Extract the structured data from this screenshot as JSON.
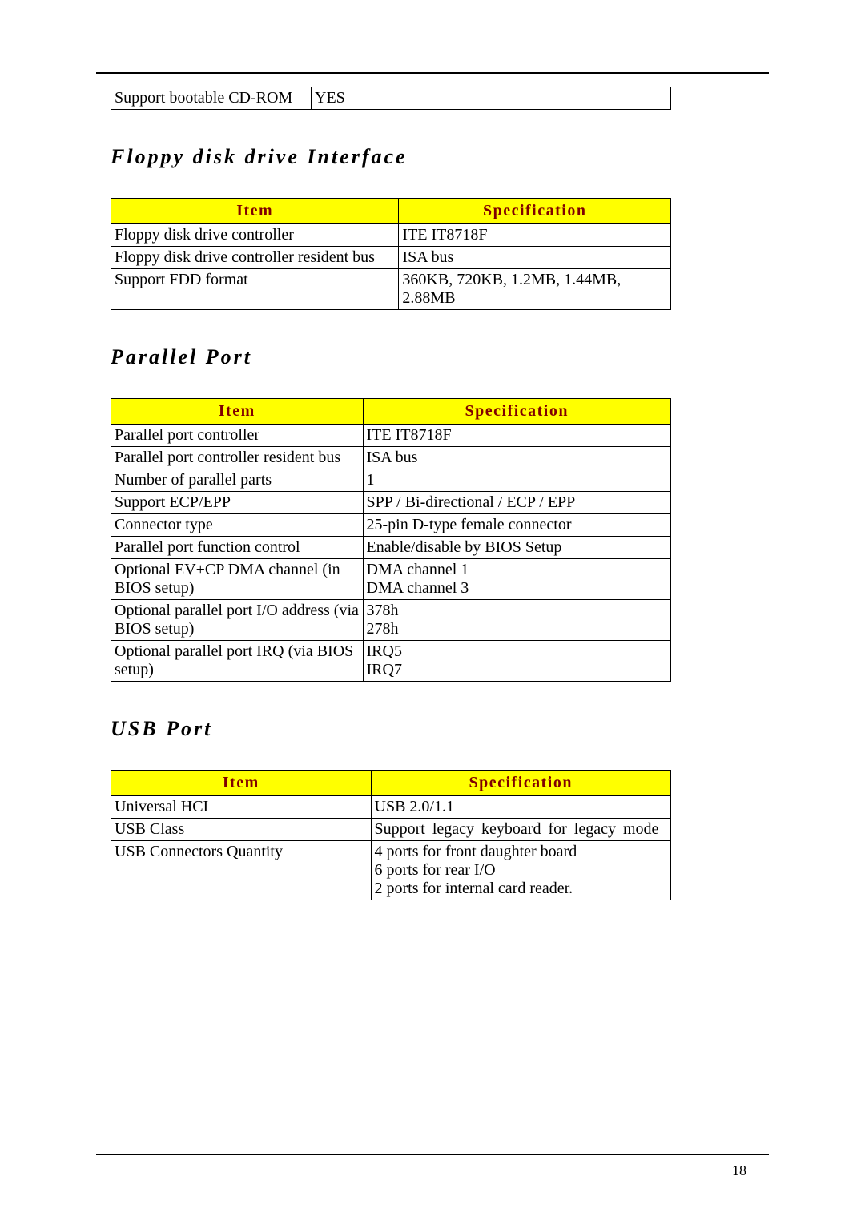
{
  "page_number": "18",
  "colors": {
    "header_bg": "#ffff00",
    "header_text": "#800000",
    "border": "#000000",
    "text": "#000000",
    "background": "#ffffff"
  },
  "top_table": {
    "columns": [
      "",
      ""
    ],
    "rows": [
      {
        "item": "Support bootable CD-ROM",
        "spec": "YES"
      }
    ]
  },
  "sections": [
    {
      "title": "Floppy disk drive Interface",
      "col_widths": [
        "360px",
        "340px"
      ],
      "headers": [
        "Item",
        "Specification"
      ],
      "rows": [
        {
          "item": [
            "Floppy disk drive controller"
          ],
          "spec": [
            "ITE IT8718F"
          ]
        },
        {
          "item": [
            "Floppy disk drive controller resident bus"
          ],
          "spec": [
            "ISA bus"
          ]
        },
        {
          "item": [
            "Support FDD format"
          ],
          "spec": [
            "360KB, 720KB, 1.2MB, 1.44MB, 2.88MB"
          ]
        }
      ]
    },
    {
      "title": "Parallel Port",
      "col_widths": [
        "315px",
        "385px"
      ],
      "headers": [
        "Item",
        "Specification"
      ],
      "rows": [
        {
          "item": [
            "Parallel port controller"
          ],
          "spec": [
            "ITE IT8718F"
          ]
        },
        {
          "item": [
            "Parallel port controller resident bus"
          ],
          "spec": [
            "ISA bus"
          ]
        },
        {
          "item": [
            "Number of parallel parts"
          ],
          "spec": [
            "1"
          ]
        },
        {
          "item": [
            "Support ECP/EPP"
          ],
          "spec": [
            "SPP / Bi-directional / ECP / EPP"
          ]
        },
        {
          "item": [
            "Connector type"
          ],
          "spec": [
            "25-pin D-type female connector"
          ]
        },
        {
          "item": [
            "Parallel port function control"
          ],
          "spec": [
            "Enable/disable by BIOS Setup"
          ]
        },
        {
          "item": [
            "Optional EV+CP DMA channel (in BIOS setup)"
          ],
          "spec": [
            "DMA channel 1",
            "DMA channel 3"
          ]
        },
        {
          "item": [
            "Optional parallel port I/O address (via BIOS setup)"
          ],
          "spec": [
            "378h",
            "278h"
          ]
        },
        {
          "item": [
            "Optional parallel port IRQ (via BIOS setup)"
          ],
          "spec": [
            "IRQ5",
            "IRQ7"
          ]
        }
      ]
    },
    {
      "title": "USB Port",
      "col_widths": [
        "325px",
        "375px"
      ],
      "headers": [
        "Item",
        "Specification"
      ],
      "rows": [
        {
          "item": [
            "Universal HCI"
          ],
          "spec": [
            "USB 2.0/1.1"
          ]
        },
        {
          "item": [
            "USB Class"
          ],
          "spec": [
            "Support legacy keyboard for legacy mode"
          ],
          "spec_class": "usb-class-spec"
        },
        {
          "item": [
            "USB Connectors Quantity"
          ],
          "spec": [
            "4 ports for front daughter board",
            "6 ports for rear I/O",
            "2 ports for internal card reader."
          ]
        }
      ]
    }
  ]
}
